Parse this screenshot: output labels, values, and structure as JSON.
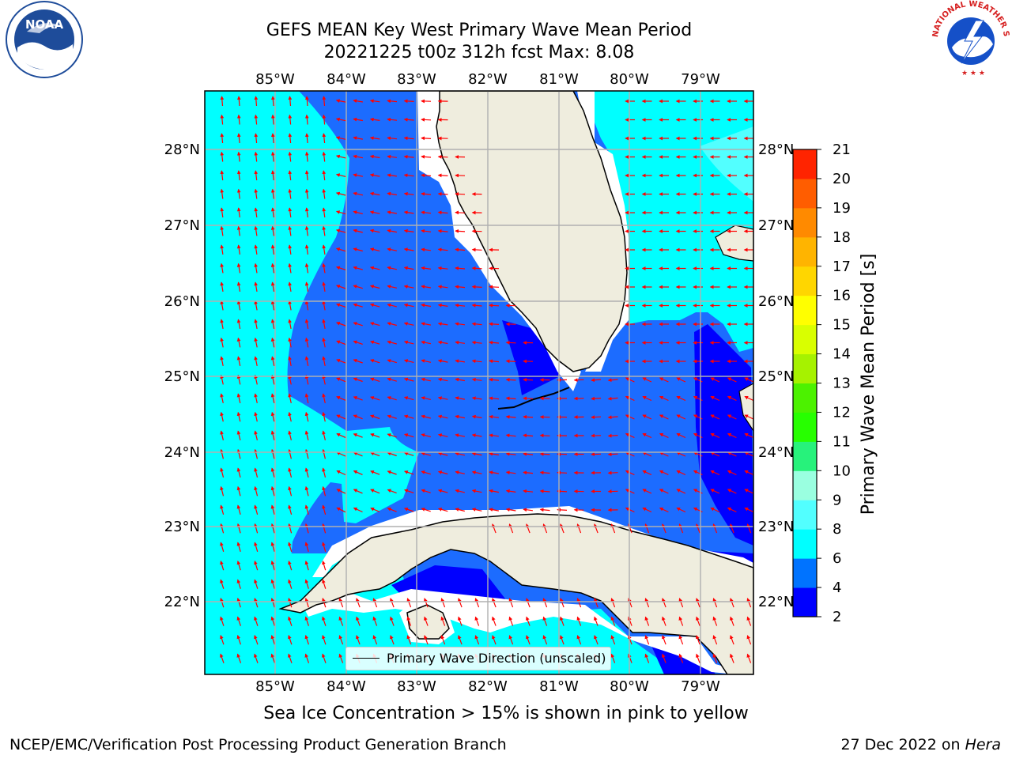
{
  "title": {
    "line1": "GEFS MEAN Key West Primary Wave Mean Period",
    "line2": "20221225 t00z 312h fcst   Max: 8.08"
  },
  "logos": {
    "noaa": {
      "icon": "noaa-logo",
      "label": "NOAA",
      "ring_text": "NATIONAL OCEANIC AND ATMOSPHERIC ADMINISTRATION · U.S. DEPARTMENT OF COMMERCE"
    },
    "nws": {
      "icon": "nws-logo",
      "ring_text": "NATIONAL WEATHER SERVICE"
    }
  },
  "axes": {
    "lon_ticks": [
      "85°W",
      "84°W",
      "83°W",
      "82°W",
      "81°W",
      "80°W",
      "79°W"
    ],
    "lat_ticks": [
      "28°N",
      "27°N",
      "26°N",
      "25°N",
      "24°N",
      "23°N",
      "22°N"
    ]
  },
  "legend": {
    "label": "Primary Wave Direction (unscaled)"
  },
  "colorbar": {
    "label": "Primary Wave Mean Period [s]",
    "ticks": [
      "2",
      "4",
      "6",
      "8",
      "9",
      "10",
      "11",
      "12",
      "13",
      "14",
      "15",
      "16",
      "17",
      "18",
      "19",
      "20",
      "21"
    ],
    "colors": [
      "#0000ff",
      "#0073ff",
      "#00ffff",
      "#52ffff",
      "#9affe0",
      "#27f27b",
      "#27ff00",
      "#4cf200",
      "#a6f200",
      "#d9ff00",
      "#ffff00",
      "#ffd600",
      "#ffb400",
      "#ff8a00",
      "#ff5d00",
      "#ff2400"
    ]
  },
  "colors": {
    "period_2_4": "#0000ff",
    "period_4_6": "#1c6cff",
    "period_6_8": "#00ffff",
    "period_8_9": "#52ffff",
    "land": "#efedde",
    "arrow": "#ff0000",
    "grid": "#b0b0b0"
  },
  "footer": {
    "ice_note": "Sea Ice Concentration > 15% is shown in pink to yellow",
    "credit": "NCEP/EMC/Verification Post Processing Product Generation Branch",
    "date_prefix": "27 Dec 2022 on ",
    "machine": "Hera"
  }
}
